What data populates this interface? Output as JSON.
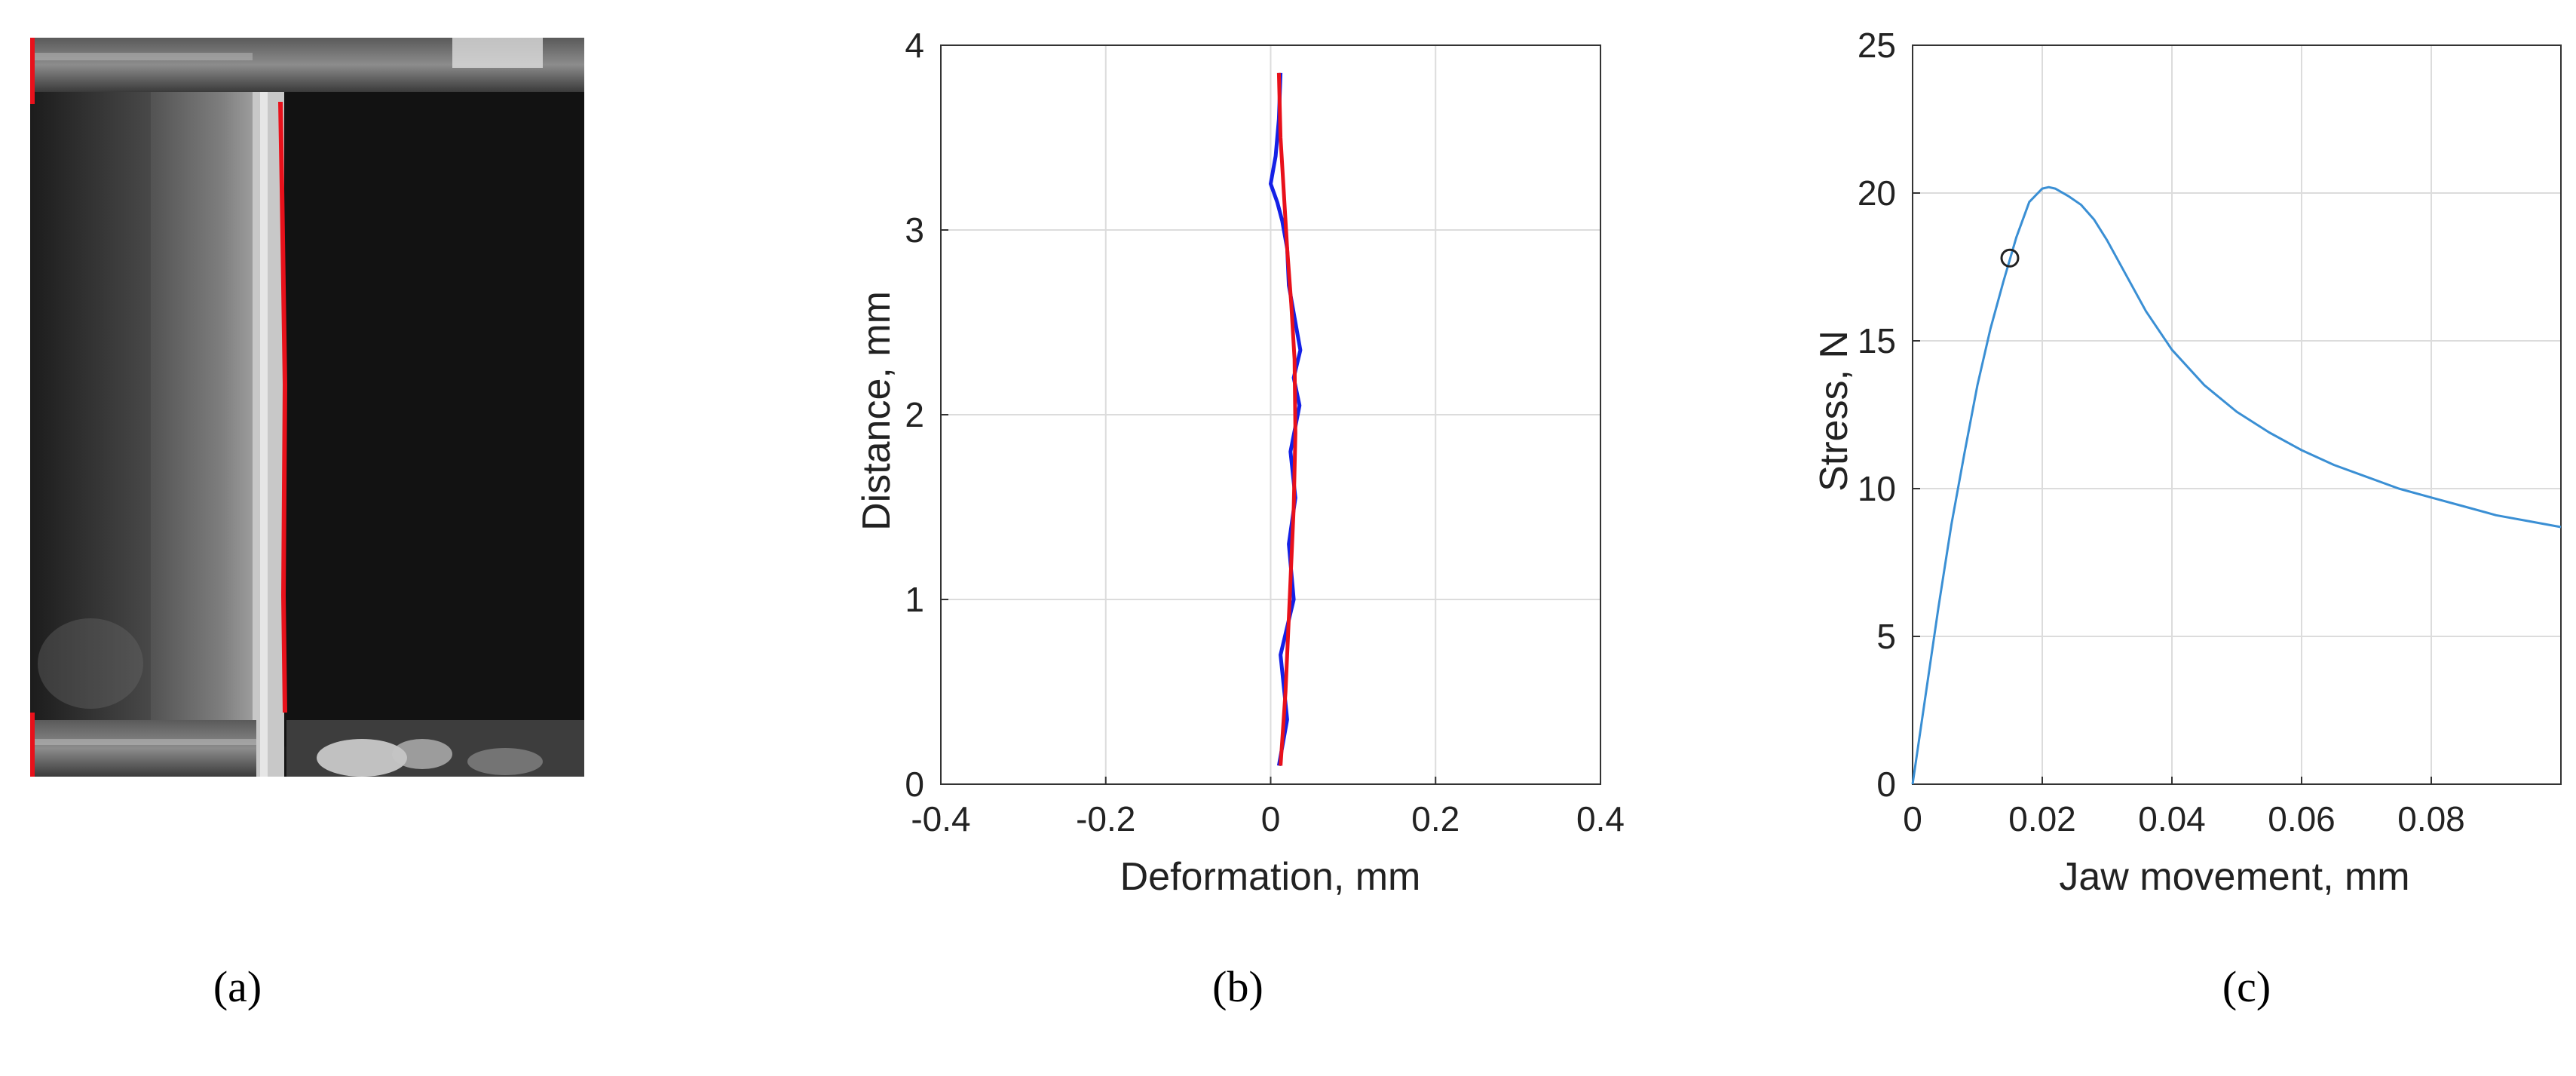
{
  "captions": {
    "a": "(a)",
    "b": "(b)",
    "c": "(c)"
  },
  "colors": {
    "red_trace": "#e8111b",
    "blue_trace": "#1420e6",
    "stress_line": "#3a8fd4",
    "grid": "#dcdcdc",
    "axis": "#333333"
  },
  "chart_data": [
    {
      "type": "image",
      "note": "grayscale photograph of specimen with red edge markers"
    },
    {
      "type": "line",
      "xlabel": "Deformation, mm",
      "ylabel": "Distance, mm",
      "xlim": [
        -0.4,
        0.4
      ],
      "ylim": [
        0,
        4
      ],
      "xticks": [
        "-0.4",
        "-0.2",
        "0",
        "0.2",
        "0.4"
      ],
      "yticks": [
        "0",
        "1",
        "2",
        "3",
        "4"
      ],
      "grid": true,
      "series": [
        {
          "color": "#1420e6",
          "x": [
            0.01,
            0.02,
            0.012,
            0.028,
            0.022,
            0.03,
            0.024,
            0.035,
            0.028,
            0.036,
            0.03,
            0.022,
            0.02,
            0.014,
            0.008,
            0.0,
            0.006,
            0.01,
            0.012
          ],
          "y": [
            0.1,
            0.35,
            0.7,
            1.0,
            1.3,
            1.55,
            1.8,
            2.05,
            2.2,
            2.35,
            2.5,
            2.7,
            2.9,
            3.05,
            3.15,
            3.25,
            3.4,
            3.6,
            3.85
          ]
        },
        {
          "color": "#e8111b",
          "x": [
            0.012,
            0.018,
            0.023,
            0.028,
            0.03,
            0.029,
            0.025,
            0.02,
            0.016,
            0.012,
            0.01
          ],
          "y": [
            0.1,
            0.5,
            1.0,
            1.5,
            1.9,
            2.3,
            2.6,
            2.9,
            3.2,
            3.5,
            3.85
          ]
        }
      ]
    },
    {
      "type": "line",
      "xlabel": "Jaw movement, mm",
      "ylabel": "Stress, N",
      "xlim": [
        0,
        0.1
      ],
      "ylim": [
        0,
        25
      ],
      "xticks": [
        "0",
        "0.02",
        "0.04",
        "0.06",
        "0.08"
      ],
      "yticks": [
        "0",
        "5",
        "10",
        "15",
        "20",
        "25"
      ],
      "grid": true,
      "series": [
        {
          "color": "#3a8fd4",
          "x": [
            0,
            0.002,
            0.004,
            0.006,
            0.008,
            0.01,
            0.012,
            0.014,
            0.016,
            0.018,
            0.02,
            0.021,
            0.022,
            0.024,
            0.026,
            0.028,
            0.03,
            0.033,
            0.036,
            0.04,
            0.045,
            0.05,
            0.055,
            0.06,
            0.065,
            0.07,
            0.075,
            0.08,
            0.085,
            0.09,
            0.095,
            0.1
          ],
          "y": [
            0,
            3.0,
            6.0,
            8.8,
            11.2,
            13.5,
            15.4,
            17.0,
            18.5,
            19.7,
            20.15,
            20.2,
            20.15,
            19.9,
            19.6,
            19.1,
            18.4,
            17.2,
            16.0,
            14.7,
            13.5,
            12.6,
            11.9,
            11.3,
            10.8,
            10.4,
            10.0,
            9.7,
            9.4,
            9.1,
            8.9,
            8.7
          ]
        }
      ],
      "marker": {
        "x": 0.015,
        "y": 17.8,
        "shape": "circle"
      }
    }
  ]
}
